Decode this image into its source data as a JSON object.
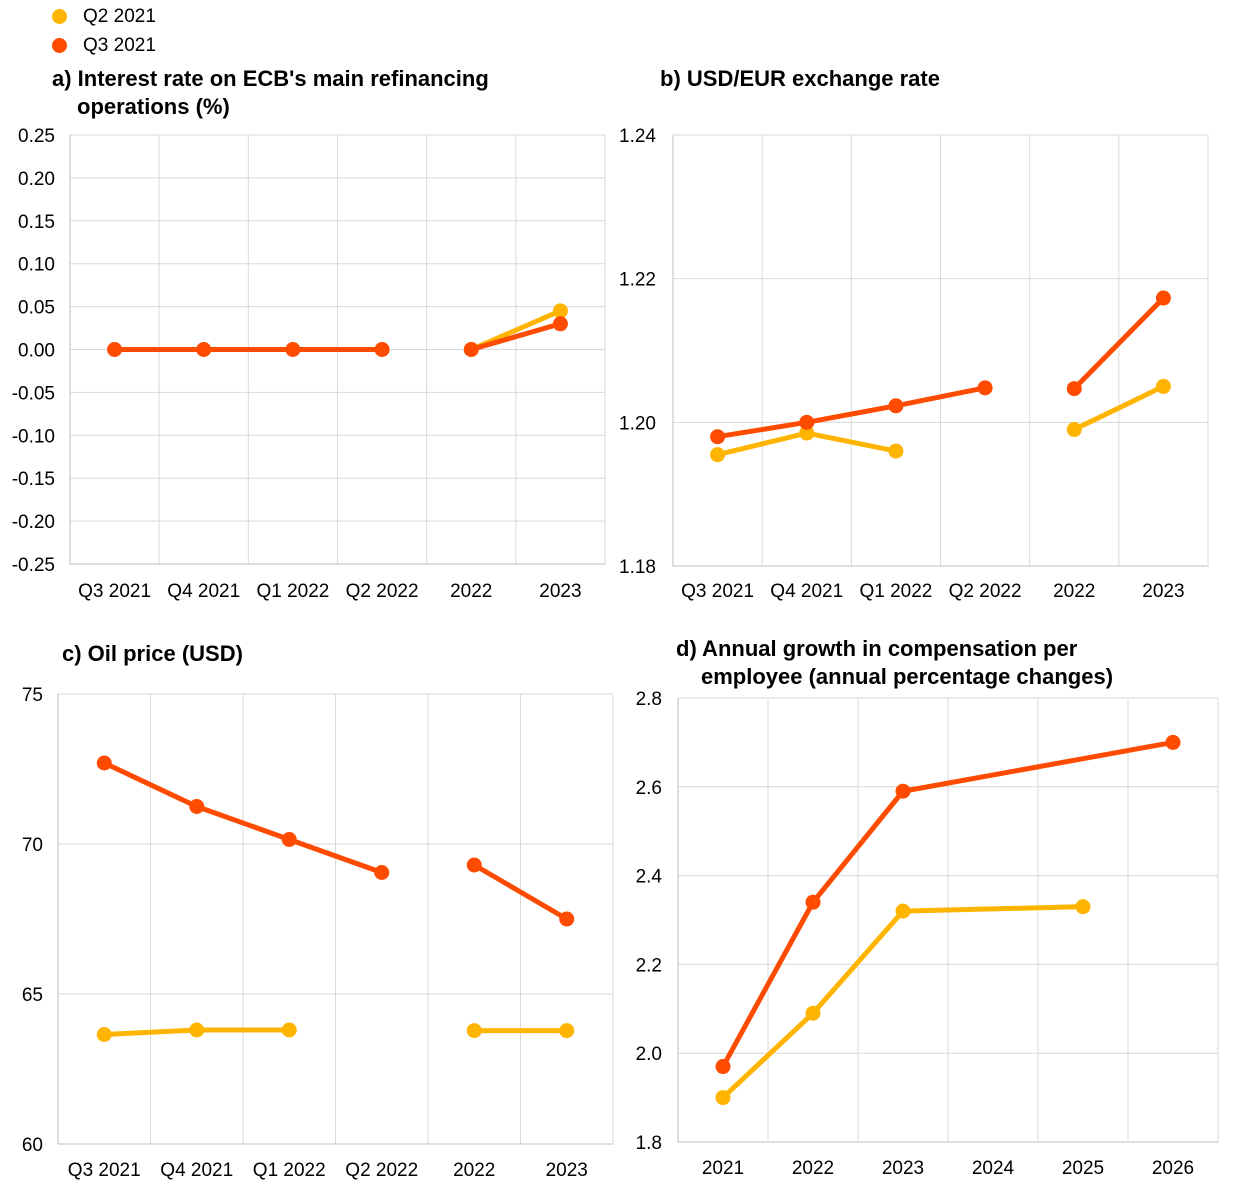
{
  "legend": [
    {
      "name": "Q2 2021",
      "color": "#FFB400"
    },
    {
      "name": "Q3 2021",
      "color": "#FF4B00"
    }
  ],
  "colors": {
    "grid": "#D9D9D9",
    "axis": "#BFBFBF"
  },
  "chart_data": [
    {
      "id": "a",
      "type": "line",
      "title_line1": "a) Interest rate on ECB's main refinancing",
      "title_line2": "operations (%)",
      "categories": [
        "Q3 2021",
        "Q4 2021",
        "Q1 2022",
        "Q2 2022",
        "2022",
        "2023"
      ],
      "yticks": [
        "0.25",
        "0.20",
        "0.15",
        "0.10",
        "0.05",
        "0.00",
        "-0.05",
        "-0.10",
        "-0.15",
        "-0.20",
        "-0.25"
      ],
      "ylim": [
        -0.25,
        0.25
      ],
      "grid": true,
      "series": [
        {
          "name": "Q2 2021",
          "segments": [
            [
              4,
              5
            ]
          ],
          "values": [
            null,
            null,
            null,
            null,
            0.0,
            0.045
          ]
        },
        {
          "name": "Q3 2021",
          "segments": [
            [
              0,
              1,
              2,
              3
            ],
            [
              4,
              5
            ]
          ],
          "values": [
            0.0,
            0.0,
            0.0,
            0.0,
            0.0,
            0.03
          ]
        }
      ]
    },
    {
      "id": "b",
      "type": "line",
      "title_line1": "b) USD/EUR exchange rate",
      "title_line2": "",
      "categories": [
        "Q3 2021",
        "Q4 2021",
        "Q1 2022",
        "Q2 2022",
        "2022",
        "2023"
      ],
      "yticks": [
        "1.24",
        "1.22",
        "1.20",
        "1.18"
      ],
      "ylim": [
        1.18,
        1.24
      ],
      "grid": true,
      "series": [
        {
          "name": "Q2 2021",
          "segments": [
            [
              0,
              1,
              2
            ],
            [
              4,
              5
            ]
          ],
          "values": [
            1.1955,
            1.1985,
            1.196,
            null,
            1.199,
            1.205
          ]
        },
        {
          "name": "Q3 2021",
          "segments": [
            [
              0,
              1,
              2,
              3
            ],
            [
              4,
              5
            ]
          ],
          "values": [
            1.198,
            1.2,
            1.2023,
            1.2048,
            1.2047,
            1.2173
          ]
        }
      ]
    },
    {
      "id": "c",
      "type": "line",
      "title_line1": "c) Oil price (USD)",
      "title_line2": "",
      "categories": [
        "Q3 2021",
        "Q4 2021",
        "Q1 2022",
        "Q2 2022",
        "2022",
        "2023"
      ],
      "yticks": [
        "75",
        "70",
        "65",
        "60"
      ],
      "ylim": [
        60,
        75
      ],
      "grid": true,
      "series": [
        {
          "name": "Q2 2021",
          "segments": [
            [
              0,
              1,
              2
            ],
            [
              4,
              5
            ]
          ],
          "values": [
            63.65,
            63.8,
            63.8,
            null,
            63.78,
            63.78
          ]
        },
        {
          "name": "Q3 2021",
          "segments": [
            [
              0,
              1,
              2,
              3
            ],
            [
              4,
              5
            ]
          ],
          "values": [
            72.7,
            71.25,
            70.15,
            69.05,
            69.3,
            67.5
          ]
        }
      ]
    },
    {
      "id": "d",
      "type": "line",
      "title_line1": "d) Annual growth in compensation per",
      "title_line2": "employee (annual percentage changes)",
      "categories": [
        "2021",
        "2022",
        "2023",
        "2024",
        "2025",
        "2026"
      ],
      "yticks": [
        "2.8",
        "2.6",
        "2.4",
        "2.2",
        "2.0",
        "1.8"
      ],
      "ylim": [
        1.8,
        2.8
      ],
      "grid": true,
      "series": [
        {
          "name": "Q2 2021",
          "segments": [
            [
              0,
              1,
              2,
              4
            ]
          ],
          "values": [
            1.9,
            2.09,
            2.32,
            null,
            2.33,
            null
          ]
        },
        {
          "name": "Q3 2021",
          "segments": [
            [
              0,
              1,
              2,
              5
            ]
          ],
          "values": [
            1.97,
            2.34,
            2.59,
            null,
            null,
            2.7
          ]
        }
      ]
    }
  ]
}
